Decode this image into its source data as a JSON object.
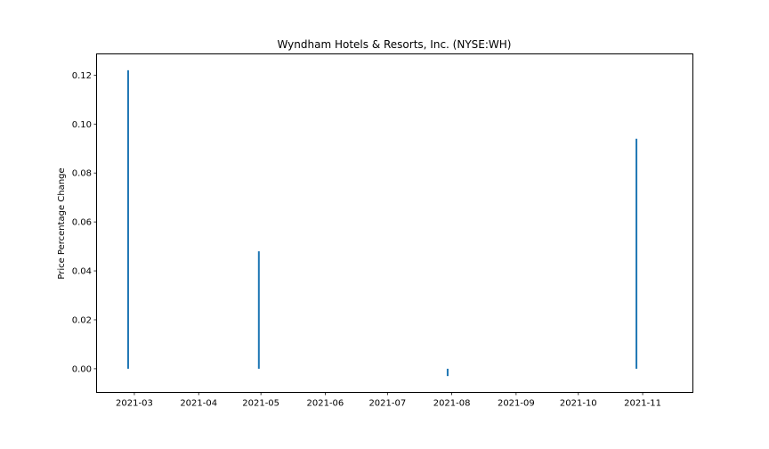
{
  "chart_data": {
    "type": "bar",
    "title": "Wyndham Hotels & Resorts, Inc. (NYSE:WH)",
    "xlabel": "",
    "ylabel": "Price Percentage Change",
    "x_tick_labels": [
      "2021-03",
      "2021-04",
      "2021-05",
      "2021-06",
      "2021-07",
      "2021-08",
      "2021-09",
      "2021-10",
      "2021-11"
    ],
    "y_tick_labels": [
      "0.00",
      "0.02",
      "0.04",
      "0.06",
      "0.08",
      "0.10",
      "0.12"
    ],
    "xlim": [
      "2021-02-11",
      "2021-11-25"
    ],
    "ylim": [
      -0.0095,
      0.1285
    ],
    "grid": false,
    "points": [
      {
        "x": "2021-02-26",
        "y": 0.122
      },
      {
        "x": "2021-04-30",
        "y": 0.048
      },
      {
        "x": "2021-07-30",
        "y": -0.003
      },
      {
        "x": "2021-10-29",
        "y": 0.094
      }
    ],
    "bar_color": "#1f77b4"
  }
}
